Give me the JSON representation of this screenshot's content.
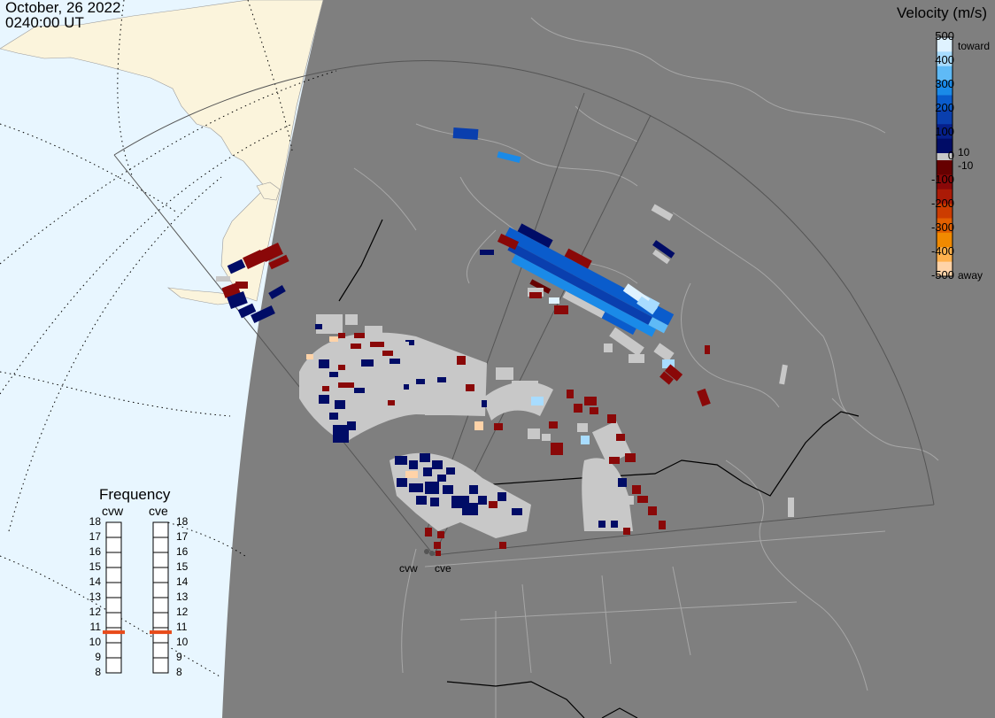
{
  "title": {
    "date": "October, 26 2022",
    "time": "0240:00 UT"
  },
  "colorbar": {
    "title": "Velocity (m/s)",
    "ticks": [
      "500",
      "400",
      "300",
      "200",
      "100",
      "0",
      "-100",
      "-200",
      "-300",
      "-400",
      "-500"
    ],
    "inner_pos_label": "10",
    "inner_neg_label": "-10",
    "toward_label": "toward",
    "away_label": "away",
    "colors_toward": [
      "#dff2ff",
      "#a8dcff",
      "#5fbaf6",
      "#1a8ae8",
      "#0a5ccc",
      "#0a3fae",
      "#061f8a",
      "#000c66"
    ],
    "colors_away": [
      "#660000",
      "#8a0808",
      "#ab1a06",
      "#cc3c00",
      "#e26000",
      "#f18a00",
      "#ffb14d",
      "#ffd3a8"
    ],
    "zero_color": "#c8c8c8"
  },
  "frequency": {
    "title": "Frequency",
    "radars": [
      "cvw",
      "cve"
    ],
    "scale": [
      "18",
      "17",
      "16",
      "15",
      "14",
      "13",
      "12",
      "11",
      "10",
      "9",
      "8"
    ],
    "values_mhz": [
      10.7,
      10.7
    ],
    "marker_color": "#e84a1a"
  },
  "map": {
    "radar_labels": [
      "cvw",
      "cve"
    ],
    "colors": {
      "night_side": "#7f7f7f",
      "day_ocean": "#e8f6ff",
      "day_land": "#fbf4dc",
      "ground_scatter": "#c8c8c8"
    }
  }
}
